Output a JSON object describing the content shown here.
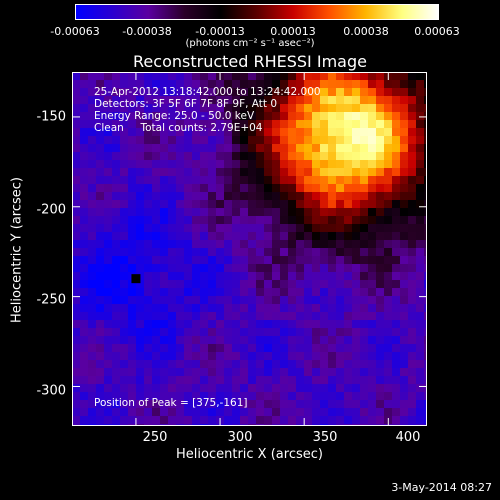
{
  "colorbar": {
    "ticks": [
      "-0.00063",
      "-0.00038",
      "-0.00013",
      "0.00013",
      "0.00038",
      "0.00063"
    ],
    "unit": "(photons cm⁻² s⁻¹ asec⁻²)",
    "colors": [
      "#0000ff",
      "#2a00d0",
      "#5a00a0",
      "#2a0028",
      "#000000",
      "#5a0000",
      "#c80000",
      "#ff5000",
      "#ffb400",
      "#ffff80",
      "#ffffff"
    ]
  },
  "chart_data": {
    "type": "heatmap",
    "title": "Reconstructed RHESSI Image",
    "xlabel": "Heliocentric X (arcsec)",
    "ylabel": "Heliocentric Y (arcsec)",
    "xlim": [
      212,
      423
    ],
    "ylim": [
      -322,
      -125
    ],
    "xticks": [
      "250",
      "300",
      "350",
      "400"
    ],
    "yticks": [
      "-150",
      "-200",
      "-250",
      "-300"
    ],
    "zlim": [
      -0.00063,
      0.00063
    ],
    "peak": [
      375,
      -161
    ],
    "min_marker": [
      250,
      -240
    ],
    "annotations": {
      "time": "25-Apr-2012 13:18:42.000 to 13:24:42.000",
      "detectors": "Detectors: 3F 5F 6F 7F 8F 9F, Att 0",
      "energy": "Energy Range: 25.0 - 50.0 keV",
      "clean": "Clean     Total counts: 2.79E+04",
      "peak_text": "Position of Peak = [375,-161]"
    }
  },
  "footer": {
    "date": "3-May-2014 08:27"
  }
}
